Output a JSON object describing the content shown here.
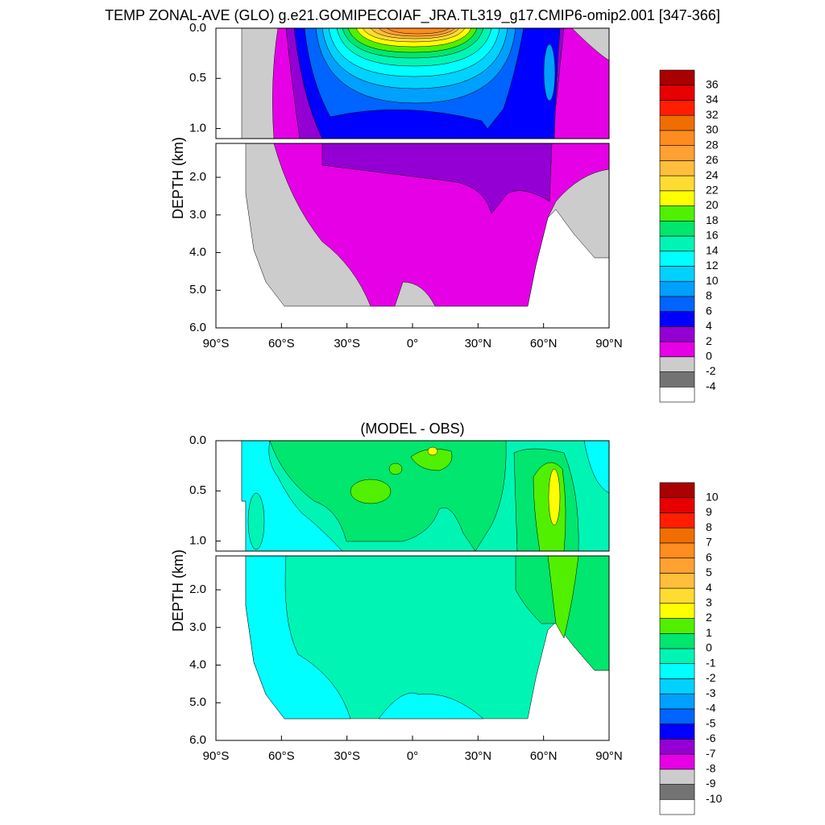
{
  "chart_data": [
    {
      "type": "contour",
      "title": "TEMP ZONAL-AVE (GLO) g.e21.GOMIPECOIAF_JRA.TL319_g17.CMIP6-omip2.001 [347-366]",
      "ylabel": "DEPTH (km)",
      "xlim": [
        -90,
        90
      ],
      "xticks": [
        {
          "value": -90,
          "label": "90°S"
        },
        {
          "value": -60,
          "label": "60°S"
        },
        {
          "value": -30,
          "label": "30°S"
        },
        {
          "value": 0,
          "label": "0°"
        },
        {
          "value": 30,
          "label": "30°N"
        },
        {
          "value": 60,
          "label": "60°N"
        },
        {
          "value": 90,
          "label": "90°N"
        }
      ],
      "ylim": [
        0,
        6
      ],
      "yticks": [
        {
          "value": 0,
          "label": "0.0"
        },
        {
          "value": 0.5,
          "label": "0.5"
        },
        {
          "value": 1,
          "label": "1.0"
        },
        {
          "value": 2,
          "label": "2.0"
        },
        {
          "value": 3,
          "label": "3.0"
        },
        {
          "value": 4,
          "label": "4.0"
        },
        {
          "value": 5,
          "label": "5.0"
        },
        {
          "value": 6,
          "label": "6.0"
        }
      ],
      "levels": [
        -4,
        -2,
        0,
        2,
        4,
        6,
        8,
        10,
        12,
        14,
        16,
        18,
        20,
        22,
        24,
        26,
        28,
        30,
        32,
        34,
        36
      ],
      "colors": [
        "#ffffff",
        "#737373",
        "#cccccc",
        "#e600e6",
        "#9400d3",
        "#0000ff",
        "#0064ff",
        "#00a0ff",
        "#00d2ff",
        "#00ffff",
        "#00f5b4",
        "#00e66e",
        "#50f000",
        "#ffff00",
        "#ffdc32",
        "#ffbe3c",
        "#ffa032",
        "#ff8c1e",
        "#f06e00",
        "#ff1e00",
        "#e60000",
        "#aa0000"
      ]
    },
    {
      "type": "contour",
      "title": "(MODEL - OBS)",
      "ylabel": "DEPTH (km)",
      "xlim": [
        -90,
        90
      ],
      "xticks": [
        {
          "value": -90,
          "label": "90°S"
        },
        {
          "value": -60,
          "label": "60°S"
        },
        {
          "value": -30,
          "label": "30°S"
        },
        {
          "value": 0,
          "label": "0°"
        },
        {
          "value": 30,
          "label": "30°N"
        },
        {
          "value": 60,
          "label": "60°N"
        },
        {
          "value": 90,
          "label": "90°N"
        }
      ],
      "ylim": [
        0,
        6
      ],
      "yticks": [
        {
          "value": 0,
          "label": "0.0"
        },
        {
          "value": 0.5,
          "label": "0.5"
        },
        {
          "value": 1,
          "label": "1.0"
        },
        {
          "value": 2,
          "label": "2.0"
        },
        {
          "value": 3,
          "label": "3.0"
        },
        {
          "value": 4,
          "label": "4.0"
        },
        {
          "value": 5,
          "label": "5.0"
        },
        {
          "value": 6,
          "label": "6.0"
        }
      ],
      "levels": [
        -10,
        -9,
        -8,
        -7,
        -6,
        -5,
        -4,
        -3,
        -2,
        -1,
        0,
        1,
        2,
        3,
        4,
        5,
        6,
        7,
        8,
        9,
        10
      ],
      "colors": [
        "#ffffff",
        "#737373",
        "#cccccc",
        "#e600e6",
        "#9400d3",
        "#0000ff",
        "#0064ff",
        "#00a0ff",
        "#00d2ff",
        "#00ffff",
        "#00f5b4",
        "#00e66e",
        "#50f000",
        "#ffff00",
        "#ffdc32",
        "#ffbe3c",
        "#ffa032",
        "#ff8c1e",
        "#f06e00",
        "#ff1e00",
        "#e60000",
        "#aa0000"
      ]
    }
  ]
}
